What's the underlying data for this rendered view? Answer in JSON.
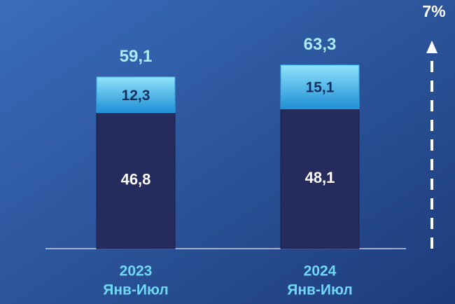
{
  "chart_data": {
    "type": "stacked_bar",
    "categories": [
      "2023",
      "2024"
    ],
    "category_sublabels": [
      "Янв-Июл",
      "Янв-Июл"
    ],
    "series": [
      {
        "color": "#262b5e",
        "values": [
          46.8,
          48.1
        ],
        "value_labels": [
          "46,8",
          "48,1"
        ]
      },
      {
        "color": "#3bb7ec",
        "values": [
          12.3,
          15.1
        ],
        "value_labels": [
          "12,3",
          "15,1"
        ]
      }
    ],
    "totals": [
      59.1,
      63.3
    ],
    "total_labels": [
      "59,1",
      "63,3"
    ],
    "annotation": "7%"
  }
}
